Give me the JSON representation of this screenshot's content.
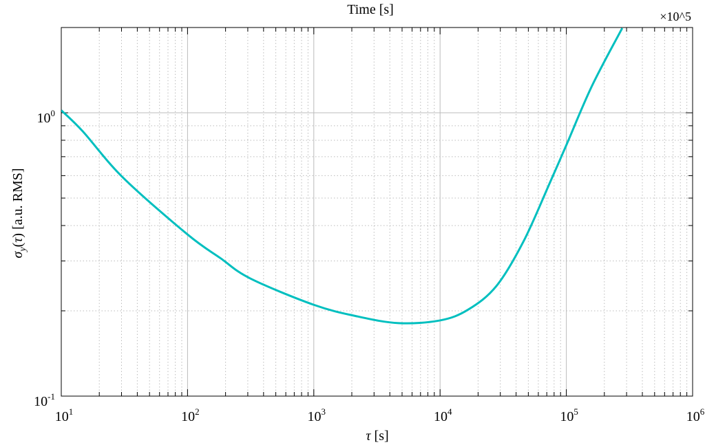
{
  "chart_data": {
    "type": "line",
    "title": "",
    "xlabel": "τ [s]",
    "ylabel": "σ_y(τ) [a.u. RMS]",
    "top_xlabel": "Time [s]",
    "top_multiplier": "×10^5",
    "x_scale": "log",
    "y_scale": "log",
    "xlim": [
      10,
      1000000
    ],
    "ylim": [
      0.1,
      2
    ],
    "grid": true,
    "x_ticks": [
      {
        "base": "10",
        "exp": "1"
      },
      {
        "base": "10",
        "exp": "2"
      },
      {
        "base": "10",
        "exp": "3"
      },
      {
        "base": "10",
        "exp": "4"
      },
      {
        "base": "10",
        "exp": "5"
      },
      {
        "base": "10",
        "exp": "6"
      }
    ],
    "y_ticks": [
      {
        "base": "10",
        "exp": "-1"
      },
      {
        "base": "10",
        "exp": "0"
      }
    ],
    "series": [
      {
        "color": "#00BFBF",
        "x": [
          10,
          14.8,
          31,
          100,
          182,
          315,
          1000,
          2230,
          4700,
          10000,
          16700,
          28000,
          46000,
          74000,
          100000,
          159000,
          277000
        ],
        "y": [
          1.02,
          0.86,
          0.589,
          0.372,
          0.307,
          0.26,
          0.21,
          0.191,
          0.181,
          0.185,
          0.202,
          0.245,
          0.353,
          0.566,
          0.769,
          1.24,
          1.99
        ]
      }
    ]
  }
}
